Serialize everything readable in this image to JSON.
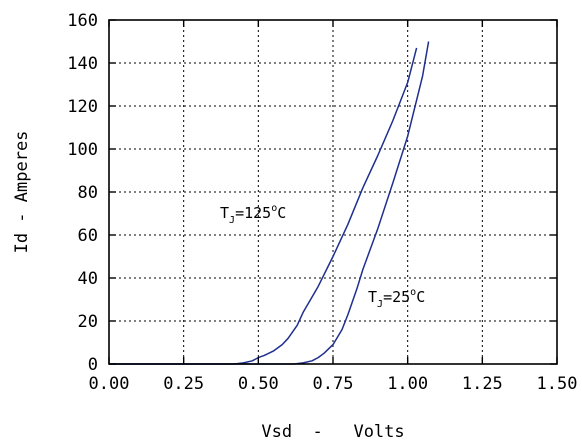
{
  "chart_data": {
    "type": "line",
    "title": "",
    "xlabel": "Vsd  -   Volts",
    "ylabel": "Id  -  Amperes",
    "xlim": [
      0,
      1.5
    ],
    "ylim": [
      0,
      160
    ],
    "x_ticks": [
      "0.00",
      "0.25",
      "0.50",
      "0.75",
      "1.00",
      "1.25",
      "1.50"
    ],
    "y_ticks": [
      "0",
      "20",
      "40",
      "60",
      "80",
      "100",
      "120",
      "140",
      "160"
    ],
    "grid": true,
    "line_color": "#1f2f8f",
    "series": [
      {
        "name": "TJ=125°C",
        "label_main": "T",
        "label_sub": "J",
        "label_rest": "=125",
        "label_sup": "o",
        "label_unit": "C",
        "x": [
          0.0,
          0.42,
          0.45,
          0.48,
          0.5,
          0.52,
          0.55,
          0.58,
          0.6,
          0.63,
          0.65,
          0.7,
          0.75,
          0.8,
          0.85,
          0.9,
          0.95,
          1.0,
          1.03
        ],
        "y": [
          0,
          0,
          0.5,
          1.5,
          3,
          4,
          6,
          9,
          12,
          18,
          24,
          36,
          50,
          65,
          82,
          97,
          113,
          131,
          147
        ]
      },
      {
        "name": "TJ=25°C",
        "label_main": "T",
        "label_sub": "J",
        "label_rest": "=25",
        "label_sup": "o",
        "label_unit": "C",
        "x": [
          0.0,
          0.62,
          0.65,
          0.68,
          0.7,
          0.72,
          0.75,
          0.78,
          0.8,
          0.83,
          0.85,
          0.9,
          0.95,
          1.0,
          1.05,
          1.07
        ],
        "y": [
          0,
          0,
          0.5,
          1.5,
          3,
          5,
          9,
          16,
          23,
          35,
          44,
          63,
          84,
          106,
          134,
          150
        ]
      }
    ]
  }
}
